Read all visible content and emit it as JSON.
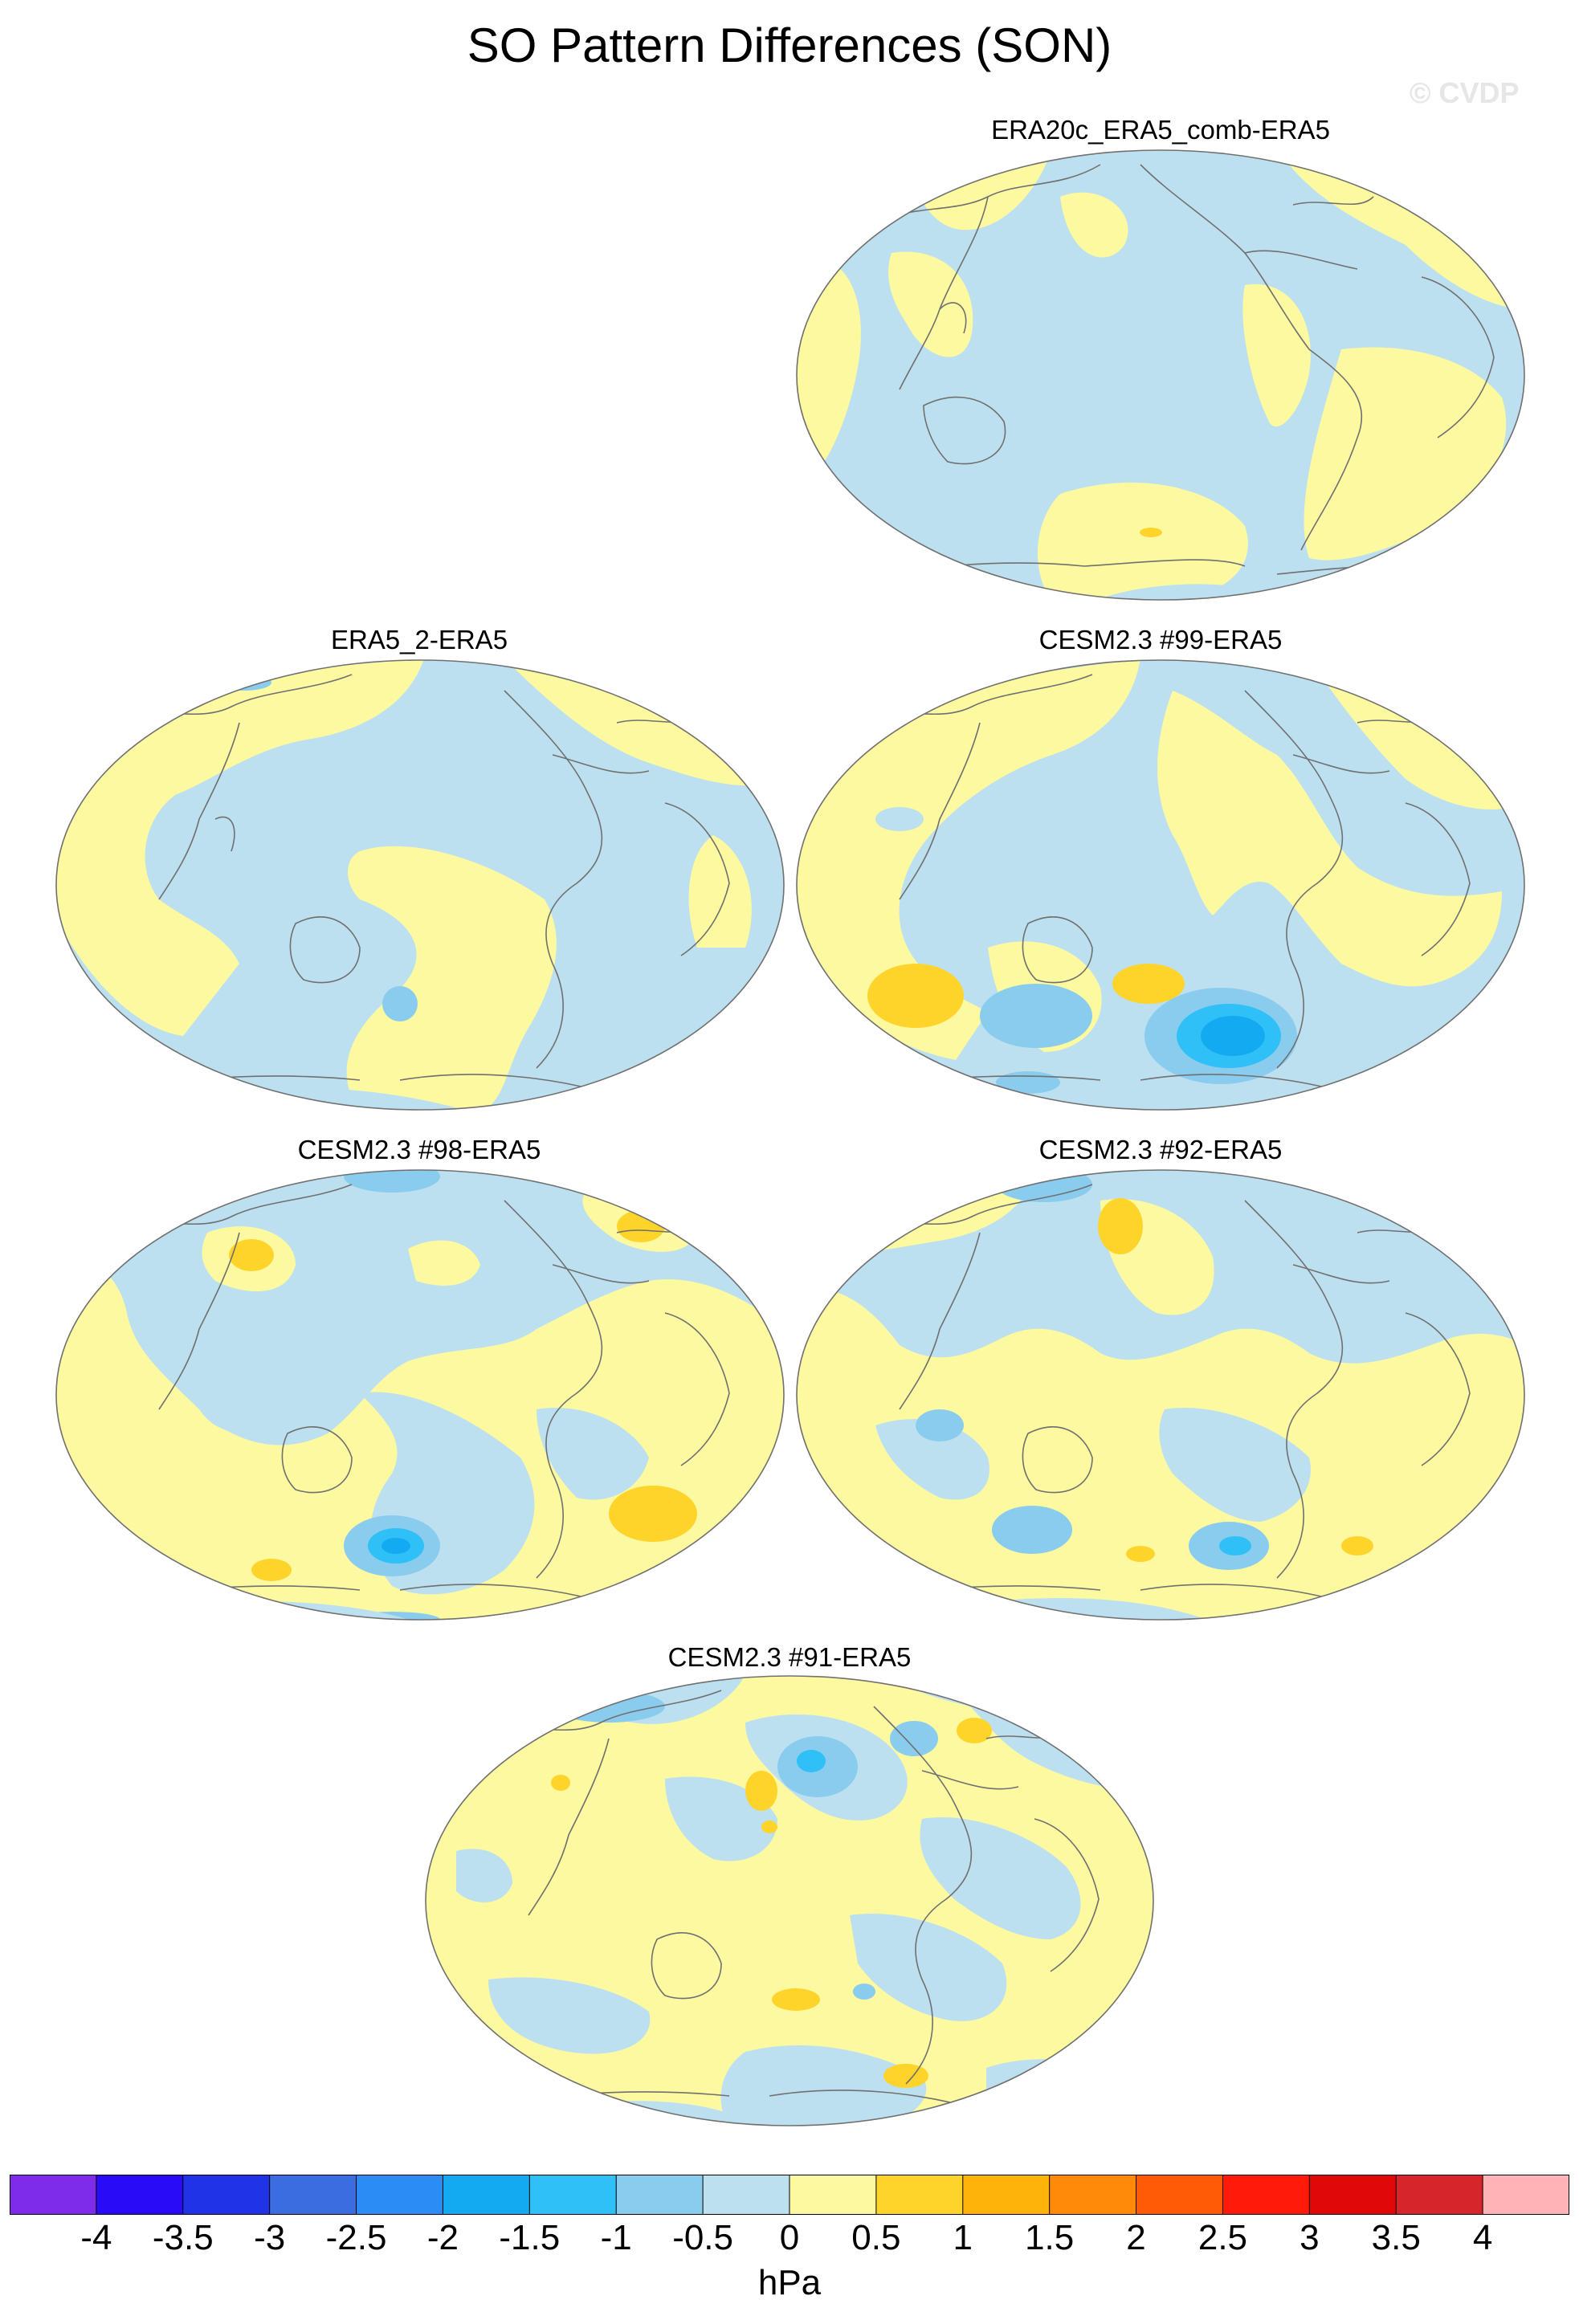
{
  "title": "SO Pattern Differences (SON)",
  "watermark": "© CVDP",
  "panels": [
    {
      "label": "ERA20c_ERA5_comb-ERA5"
    },
    {
      "label": "ERA5_2-ERA5"
    },
    {
      "label": "CESM2.3 #99-ERA5"
    },
    {
      "label": "CESM2.3 #98-ERA5"
    },
    {
      "label": "CESM2.3 #92-ERA5"
    },
    {
      "label": "CESM2.3 #91-ERA5"
    }
  ],
  "colorbar": {
    "units": "hPa",
    "levels": [
      "-4",
      "-3.5",
      "-3",
      "-2.5",
      "-2",
      "-1.5",
      "-1",
      "-0.5",
      "0",
      "0.5",
      "1",
      "1.5",
      "2",
      "2.5",
      "3",
      "3.5",
      "4"
    ],
    "colors": [
      "#7f2bea",
      "#2a0bf7",
      "#2033e6",
      "#3b6de0",
      "#2c8cf5",
      "#14aaf2",
      "#2ec0f6",
      "#8accee",
      "#bde0f0",
      "#fdf9a0",
      "#fed42b",
      "#feb30b",
      "#ff8a0a",
      "#ff5a05",
      "#ff1a0a",
      "#e00808",
      "#d6262c",
      "#ffb3b6"
    ]
  }
}
